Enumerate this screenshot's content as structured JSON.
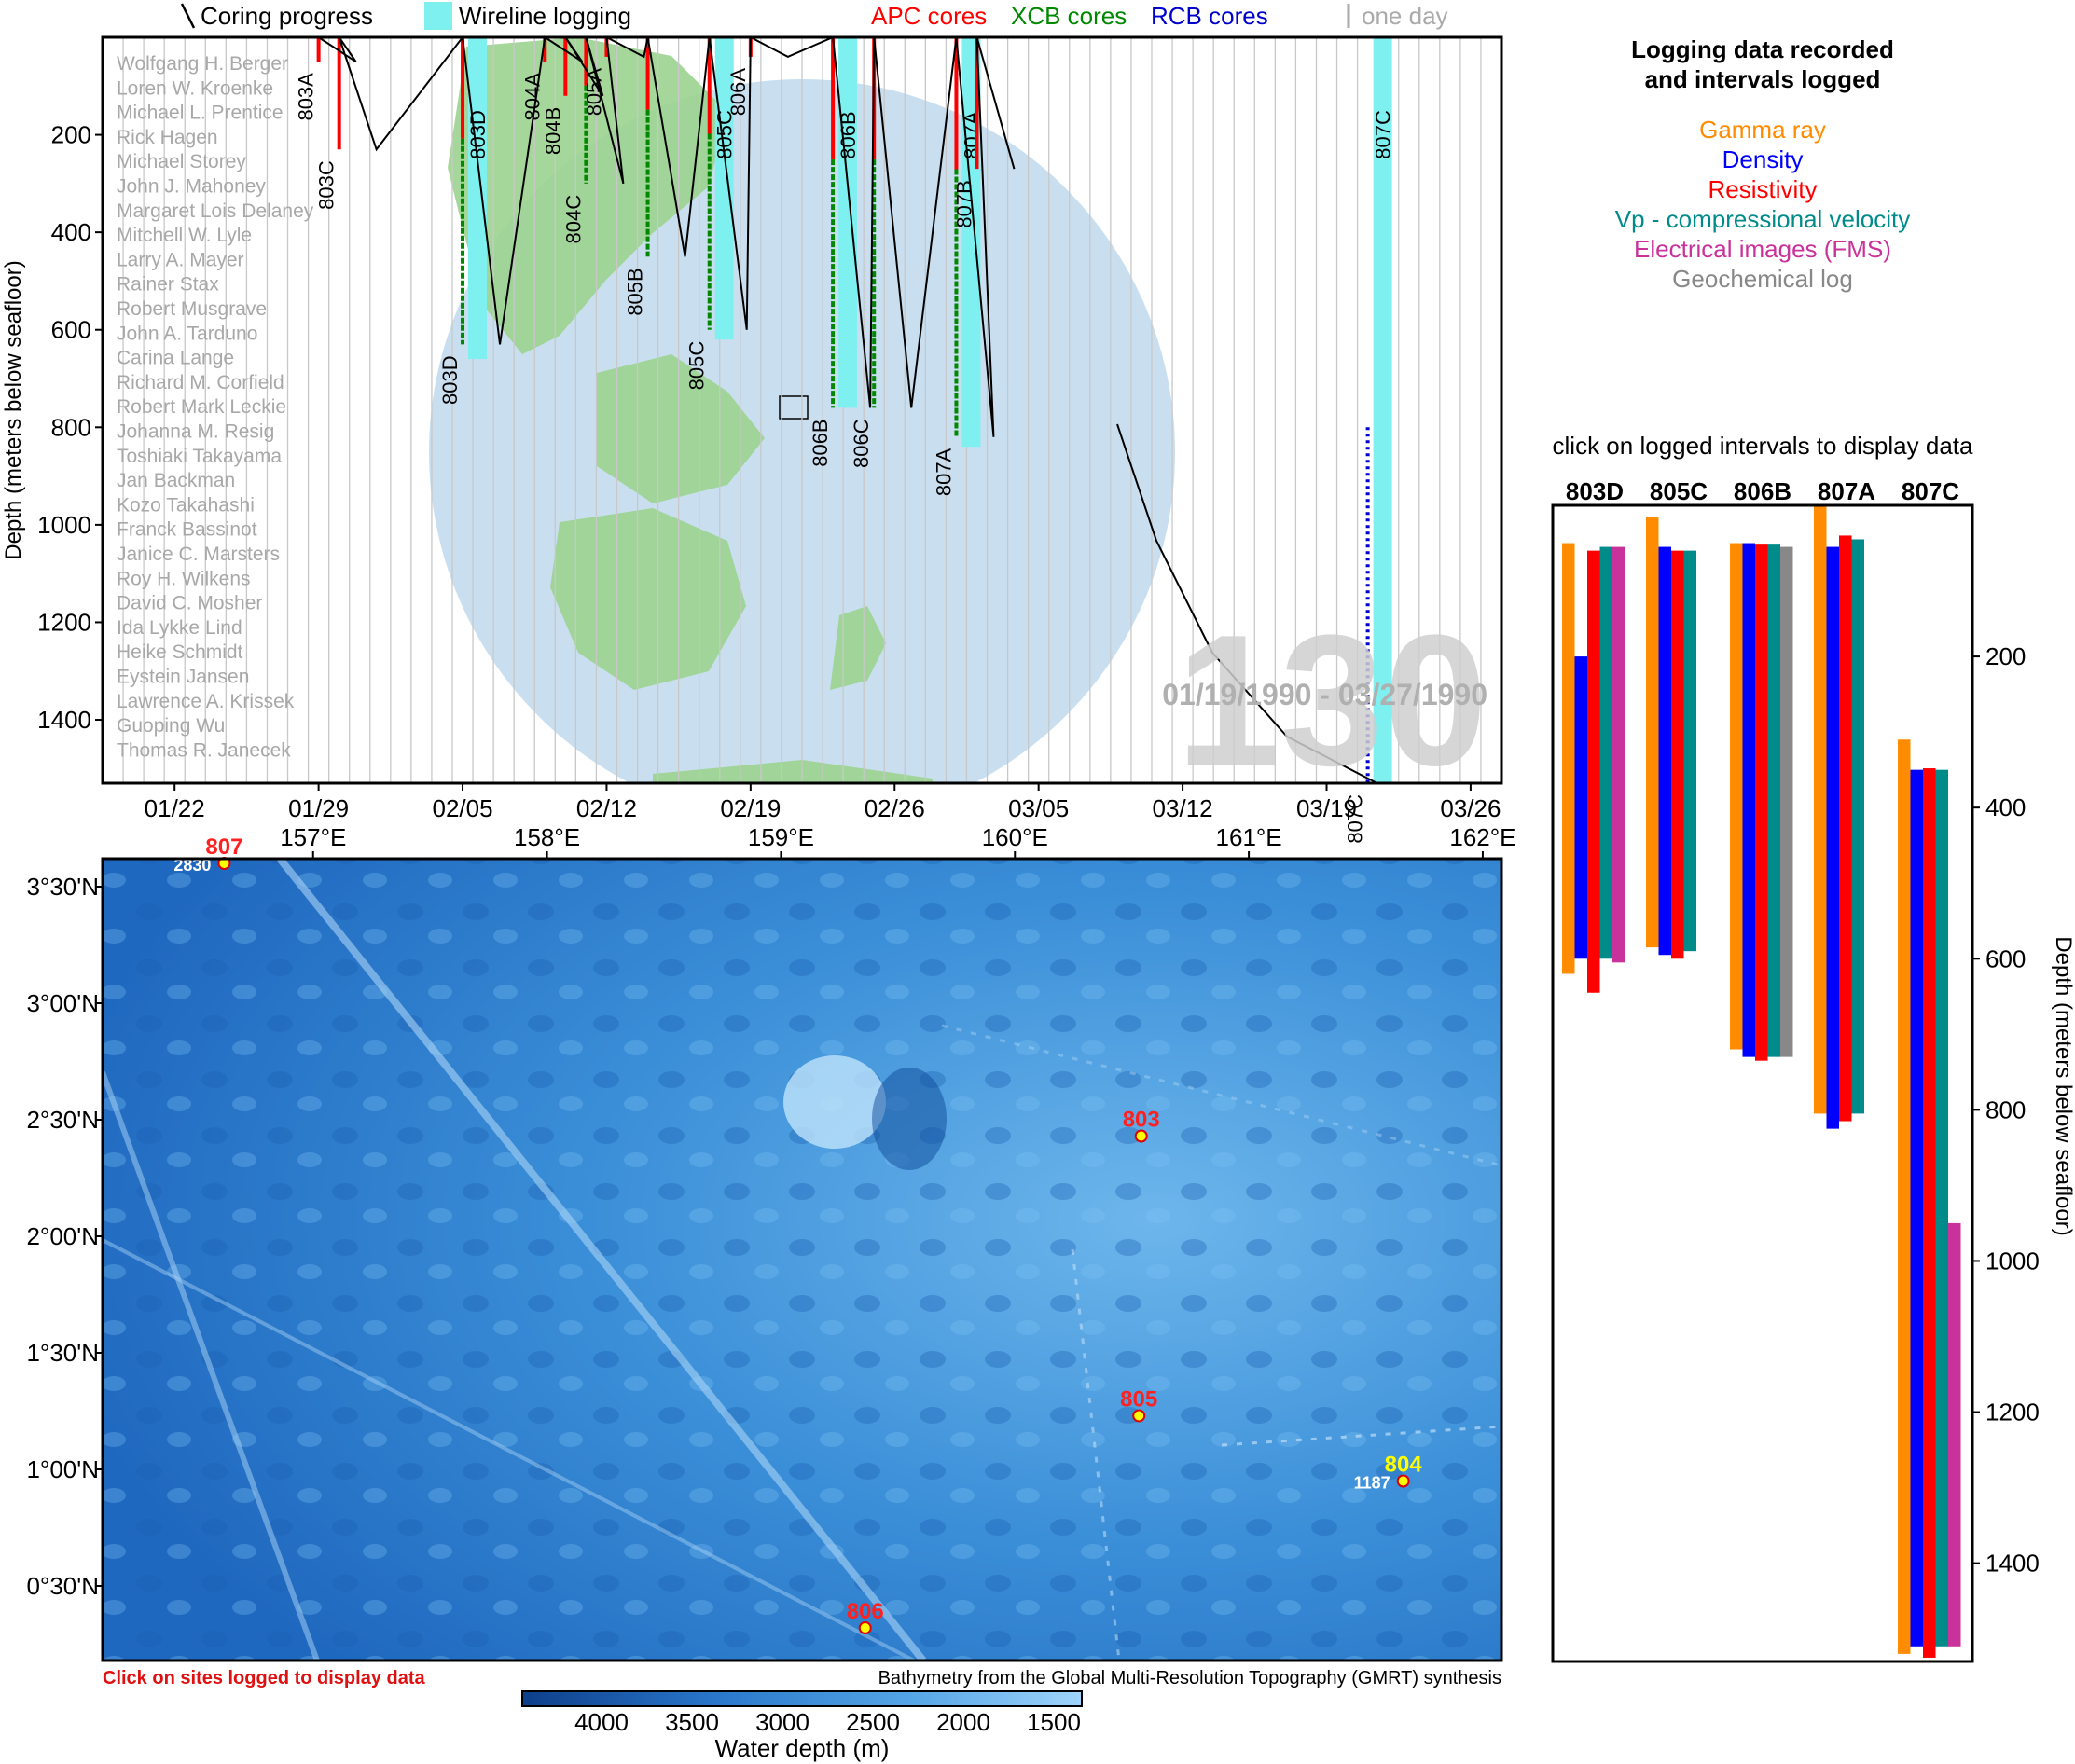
{
  "expedition_number": "130",
  "date_range": "01/19/1990 - 03/27/1990",
  "legend_top": {
    "coring_progress": "Coring progress",
    "wireline_logging": "Wireline logging",
    "apc": "APC cores",
    "xcb": "XCB cores",
    "rcb": "RCB cores",
    "one_day": "one day"
  },
  "colors": {
    "apc": "#ff0000",
    "xcb": "#008800",
    "rcb": "#0000cc",
    "wireline": "#7ff0f0",
    "gamma": "#ff8c00",
    "density": "#0000ff",
    "resistivity": "#ff0000",
    "vp": "#008b8b",
    "fms": "#c8329a",
    "geochem": "#888888"
  },
  "scientists": [
    "Wolfgang H. Berger",
    "Loren W. Kroenke",
    "Michael L. Prentice",
    "Rick Hagen",
    "Michael Storey",
    "John J. Mahoney",
    "Margaret Lois Delaney",
    "Mitchell W. Lyle",
    "Larry A. Mayer",
    "Rainer Stax",
    "Robert Musgrave",
    "John A. Tarduno",
    "Carina Lange",
    "Richard M. Corfield",
    "Robert Mark Leckie",
    "Johanna M. Resig",
    "Toshiaki Takayama",
    "Jan Backman",
    "Kozo Takahashi",
    "Franck Bassinot",
    "Janice C. Marsters",
    "Roy H. Wilkens",
    "David C. Mosher",
    "Ida Lykke Lind",
    "Heike Schmidt",
    "Eystein Jansen",
    "Lawrence A. Krissek",
    "Guoping Wu",
    "Thomas R. Janecek"
  ],
  "chart_data": [
    {
      "type": "line",
      "name": "coring-timeline",
      "ylabel": "Depth (meters below seafloor)",
      "xlim": [
        "01/19/1990",
        "03/27/1990"
      ],
      "ylim": [
        1530,
        0
      ],
      "x_ticks": [
        "01/22",
        "01/29",
        "02/05",
        "02/12",
        "02/19",
        "02/26",
        "03/05",
        "03/12",
        "03/19",
        "03/26"
      ],
      "y_ticks": [
        200,
        400,
        600,
        800,
        1000,
        1200,
        1400
      ],
      "holes": [
        {
          "label": "803A",
          "date": "01/29",
          "depth_top": 0,
          "depth_bottom": 50,
          "type": "apc"
        },
        {
          "label": "803C",
          "date": "01/30",
          "depth_top": 0,
          "depth_bottom": 230,
          "type": "apc"
        },
        {
          "label": "803D",
          "date": "02/05",
          "depth_top": 0,
          "depth_bottom": 630,
          "type": "mixed"
        },
        {
          "label": "804A",
          "date": "02/09",
          "depth_top": 0,
          "depth_bottom": 50,
          "type": "apc"
        },
        {
          "label": "804B",
          "date": "02/10",
          "depth_top": 0,
          "depth_bottom": 120,
          "type": "apc"
        },
        {
          "label": "804C",
          "date": "02/11",
          "depth_top": 0,
          "depth_bottom": 300,
          "type": "mixed"
        },
        {
          "label": "805A",
          "date": "02/12",
          "depth_top": 0,
          "depth_bottom": 40,
          "type": "apc"
        },
        {
          "label": "805B",
          "date": "02/14",
          "depth_top": 0,
          "depth_bottom": 450,
          "type": "mixed"
        },
        {
          "label": "805C",
          "date": "02/17",
          "depth_top": 0,
          "depth_bottom": 600,
          "type": "mixed"
        },
        {
          "label": "806A",
          "date": "02/19",
          "depth_top": 0,
          "depth_bottom": 40,
          "type": "apc"
        },
        {
          "label": "806B",
          "date": "02/23",
          "depth_top": 0,
          "depth_bottom": 760,
          "type": "mixed"
        },
        {
          "label": "806C",
          "date": "02/25",
          "depth_top": 0,
          "depth_bottom": 760,
          "type": "mixed"
        },
        {
          "label": "807A",
          "date": "03/01",
          "depth_top": 0,
          "depth_bottom": 820,
          "type": "mixed"
        },
        {
          "label": "807B",
          "date": "03/02",
          "depth_top": 0,
          "depth_bottom": 270,
          "type": "apc"
        },
        {
          "label": "807C",
          "date": "03/21",
          "depth_top": 800,
          "depth_bottom": 1530,
          "type": "rcb"
        }
      ],
      "wireline": [
        {
          "label": "803D",
          "date": "02/05",
          "depth_top": 0,
          "depth_bottom": 660
        },
        {
          "label": "805C",
          "date": "02/17",
          "depth_top": 0,
          "depth_bottom": 620
        },
        {
          "label": "806B",
          "date": "02/23",
          "depth_top": 0,
          "depth_bottom": 760
        },
        {
          "label": "807A",
          "date": "03/01",
          "depth_top": 0,
          "depth_bottom": 840
        },
        {
          "label": "807C",
          "date": "03/21",
          "depth_top": 0,
          "depth_bottom": 1530
        }
      ]
    },
    {
      "type": "bar",
      "name": "logging-intervals",
      "title": "Logging data recorded\nand intervals logged",
      "instruction": "click on logged intervals to display data",
      "ylabel": "Depth (meters below seafloor)",
      "ylim": [
        1530,
        0
      ],
      "y_ticks": [
        200,
        400,
        600,
        800,
        1000,
        1200,
        1400
      ],
      "legend": [
        "Gamma ray",
        "Density",
        "Resistivity",
        "Vp - compressional velocity",
        "Electrical images (FMS)",
        "Geochemical log"
      ],
      "holes": [
        {
          "label": "803D",
          "intervals": [
            {
              "log": "gamma",
              "top": 50,
              "bottom": 620
            },
            {
              "log": "density",
              "top": 200,
              "bottom": 600
            },
            {
              "log": "resistivity",
              "top": 60,
              "bottom": 645
            },
            {
              "log": "vp",
              "top": 55,
              "bottom": 600
            },
            {
              "log": "fms",
              "top": 55,
              "bottom": 605
            }
          ]
        },
        {
          "label": "805C",
          "intervals": [
            {
              "log": "gamma",
              "top": 15,
              "bottom": 585
            },
            {
              "log": "density",
              "top": 55,
              "bottom": 595
            },
            {
              "log": "resistivity",
              "top": 60,
              "bottom": 600
            },
            {
              "log": "vp",
              "top": 60,
              "bottom": 590
            }
          ]
        },
        {
          "label": "806B",
          "intervals": [
            {
              "log": "gamma",
              "top": 50,
              "bottom": 720
            },
            {
              "log": "density",
              "top": 50,
              "bottom": 730
            },
            {
              "log": "resistivity",
              "top": 52,
              "bottom": 735
            },
            {
              "log": "vp",
              "top": 52,
              "bottom": 730
            },
            {
              "log": "geochem",
              "top": 55,
              "bottom": 730
            }
          ]
        },
        {
          "label": "807A",
          "intervals": [
            {
              "log": "gamma",
              "top": 0,
              "bottom": 805
            },
            {
              "log": "density",
              "top": 55,
              "bottom": 825
            },
            {
              "log": "resistivity",
              "top": 40,
              "bottom": 815
            },
            {
              "log": "vp",
              "top": 45,
              "bottom": 805
            }
          ]
        },
        {
          "label": "807C",
          "intervals": [
            {
              "log": "gamma",
              "top": 310,
              "bottom": 1520
            },
            {
              "log": "density",
              "top": 350,
              "bottom": 1510
            },
            {
              "log": "resistivity",
              "top": 348,
              "bottom": 1525
            },
            {
              "log": "vp",
              "top": 350,
              "bottom": 1510
            },
            {
              "log": "fms",
              "top": 950,
              "bottom": 1510
            }
          ]
        }
      ]
    }
  ],
  "map": {
    "lon_ticks": [
      "157°E",
      "158°E",
      "159°E",
      "160°E",
      "161°E",
      "162°E"
    ],
    "lat_ticks": [
      "3°30'N",
      "3°00'N",
      "2°30'N",
      "2°00'N",
      "1°30'N",
      "1°00'N",
      "0°30'N"
    ],
    "sites": [
      {
        "label": "807",
        "lon": 156.62,
        "lat": 3.6,
        "depth_label": "2830",
        "color": "#ff2020"
      },
      {
        "label": "803",
        "lon": 160.54,
        "lat": 2.43,
        "depth_label": "",
        "color": "#ff2020"
      },
      {
        "label": "805",
        "lon": 160.53,
        "lat": 1.23,
        "depth_label": "",
        "color": "#ff2020"
      },
      {
        "label": "804",
        "lon": 161.66,
        "lat": 0.95,
        "depth_label": "1187",
        "color": "#ffff00"
      },
      {
        "label": "806",
        "lon": 159.36,
        "lat": 0.32,
        "depth_label": "",
        "color": "#ff2020"
      }
    ],
    "click_note": "Click on sites logged to display data",
    "credit": "Bathymetry from the Global Multi-Resolution Topography (GMRT) synthesis",
    "colorbar_ticks": [
      "4000",
      "3500",
      "3000",
      "2500",
      "2000",
      "1500"
    ],
    "colorbar_label": "Water depth (m)"
  }
}
